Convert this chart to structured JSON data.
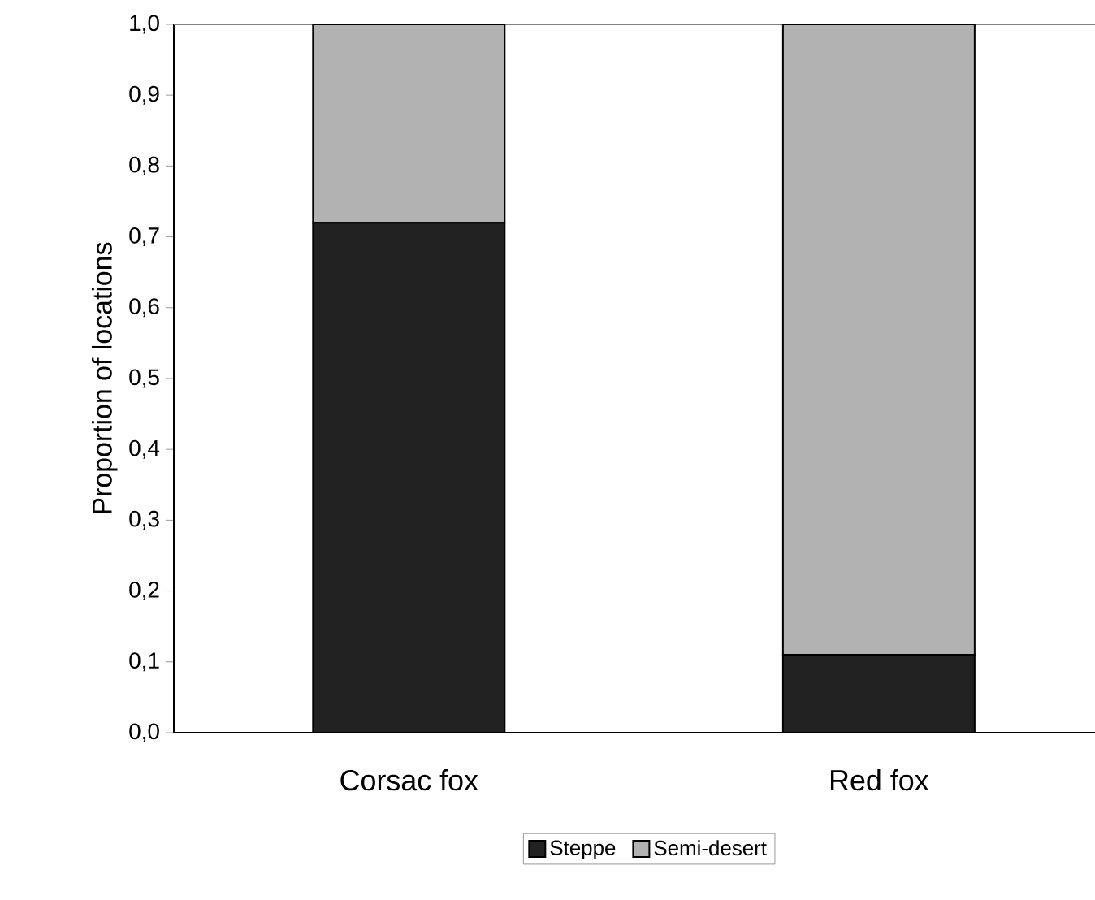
{
  "chart_data": {
    "type": "bar",
    "stacked": true,
    "categories": [
      "Corsac fox",
      "Red fox"
    ],
    "ylabel": "Proportion of locations",
    "ylim": [
      0,
      1
    ],
    "yticks": [
      {
        "value": 0,
        "label": "0,0"
      },
      {
        "value": 0.1,
        "label": "0,1"
      },
      {
        "value": 0.2,
        "label": "0,2"
      },
      {
        "value": 0.3,
        "label": "0,3"
      },
      {
        "value": 0.4,
        "label": "0,4"
      },
      {
        "value": 0.5,
        "label": "0,5"
      },
      {
        "value": 0.6,
        "label": "0,6"
      },
      {
        "value": 0.7,
        "label": "0,7"
      },
      {
        "value": 0.8,
        "label": "0,8"
      },
      {
        "value": 0.9,
        "label": "0,9"
      },
      {
        "value": 1,
        "label": "1,0"
      }
    ],
    "legend": "bottom",
    "series": [
      {
        "name": "Steppe",
        "color": "#222222",
        "values": [
          0.72,
          0.11
        ]
      },
      {
        "name": "Semi-desert",
        "color": "#b2b2b2",
        "values": [
          0.28,
          0.89
        ]
      }
    ]
  }
}
